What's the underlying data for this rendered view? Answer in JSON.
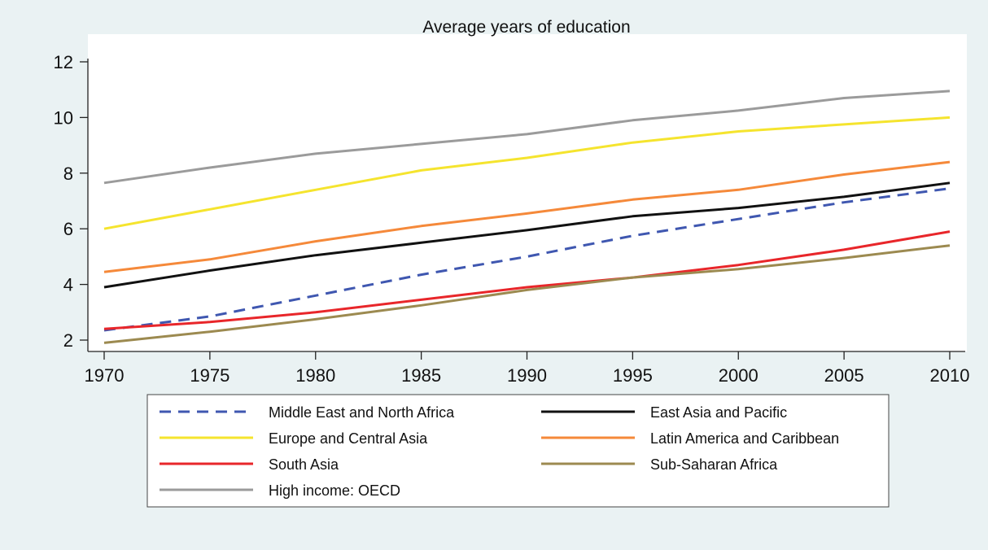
{
  "chart_data": {
    "type": "line",
    "title": "Average years of education",
    "xlabel": "",
    "ylabel": "",
    "x": [
      1970,
      1975,
      1980,
      1985,
      1990,
      1995,
      2000,
      2005,
      2010
    ],
    "xlim": [
      1970,
      2010
    ],
    "ylim": [
      2,
      12
    ],
    "x_ticks": [
      1970,
      1975,
      1980,
      1985,
      1990,
      1995,
      2000,
      2005,
      2010
    ],
    "y_ticks": [
      2,
      4,
      6,
      8,
      10,
      12
    ],
    "grid": false,
    "legend_placement": "bottom",
    "series": [
      {
        "name": "Middle East and North Africa",
        "color": "#3f57b0",
        "dash": "dashed",
        "values": [
          2.35,
          2.85,
          3.6,
          4.35,
          5.0,
          5.75,
          6.35,
          6.95,
          7.45
        ]
      },
      {
        "name": "East Asia and Pacific",
        "color": "#111111",
        "dash": "solid",
        "values": [
          3.9,
          4.5,
          5.05,
          5.5,
          5.95,
          6.45,
          6.75,
          7.15,
          7.65
        ]
      },
      {
        "name": "Europe and Central Asia",
        "color": "#f5e42e",
        "dash": "solid",
        "values": [
          6.0,
          6.7,
          7.4,
          8.1,
          8.55,
          9.1,
          9.5,
          9.75,
          10.0
        ]
      },
      {
        "name": "Latin America and Caribbean",
        "color": "#f5893a",
        "dash": "solid",
        "values": [
          4.45,
          4.9,
          5.55,
          6.1,
          6.55,
          7.05,
          7.4,
          7.95,
          8.4
        ]
      },
      {
        "name": "South Asia",
        "color": "#e8262a",
        "dash": "solid",
        "values": [
          2.4,
          2.65,
          3.0,
          3.45,
          3.9,
          4.25,
          4.7,
          5.25,
          5.9
        ]
      },
      {
        "name": "Sub-Saharan Africa",
        "color": "#9c8a50",
        "dash": "solid",
        "values": [
          1.9,
          2.3,
          2.75,
          3.25,
          3.8,
          4.25,
          4.55,
          4.95,
          5.4
        ]
      },
      {
        "name": "High income: OECD",
        "color": "#9b9b9b",
        "dash": "solid",
        "values": [
          7.65,
          8.2,
          8.7,
          9.05,
          9.4,
          9.9,
          10.25,
          10.7,
          10.95
        ]
      }
    ]
  }
}
